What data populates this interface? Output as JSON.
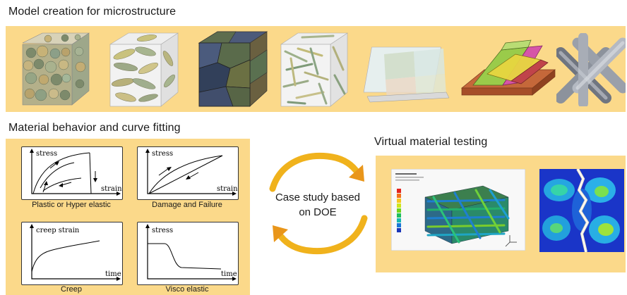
{
  "sections": {
    "model_creation": {
      "title": "Model creation for microstructure"
    },
    "material_behavior": {
      "title": "Material behavior and curve fitting",
      "plots": [
        {
          "caption": "Plastic or Hyper elastic",
          "y_label": "stress",
          "x_label": "strain"
        },
        {
          "caption": "Damage and Failure",
          "y_label": "stress",
          "x_label": "strain"
        },
        {
          "caption": "Creep",
          "y_label": "creep strain",
          "x_label": "time"
        },
        {
          "caption": "Visco elastic",
          "y_label": "stress",
          "x_label": "time"
        }
      ]
    },
    "cycle": {
      "line1": "Case study based",
      "line2": "on DOE"
    },
    "virtual_testing": {
      "title": "Virtual material testing"
    }
  },
  "colors": {
    "band": "#fbd98a",
    "arrow_gold": "#f0b21c",
    "arrow_orange": "#e9961a"
  }
}
